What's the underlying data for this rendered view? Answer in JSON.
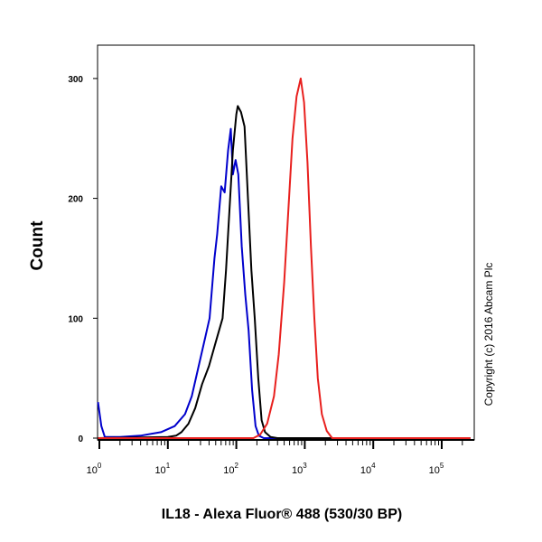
{
  "chart_data": {
    "type": "line",
    "title": "",
    "xlabel": "IL18 - Alexa Fluor® 488 (530/30 BP)",
    "ylabel": "Count",
    "x_scale": "log",
    "xlim": [
      0.95,
      262144
    ],
    "ylim": [
      0,
      330
    ],
    "x_ticks": [
      1,
      10,
      100,
      1000,
      10000,
      100000
    ],
    "x_tick_labels": [
      {
        "base": "10",
        "exp": "0"
      },
      {
        "base": "10",
        "exp": "1"
      },
      {
        "base": "10",
        "exp": "2"
      },
      {
        "base": "10",
        "exp": "3"
      },
      {
        "base": "10",
        "exp": "4"
      },
      {
        "base": "10",
        "exp": "5"
      }
    ],
    "y_ticks": [
      0,
      100,
      200,
      300
    ],
    "y_tick_labels": [
      "0",
      "100",
      "200",
      "300"
    ],
    "grid": false,
    "annotation": "Copyright (c) 2016 Abcam Plc",
    "series": [
      {
        "color": "#0000cc",
        "x": [
          0.955,
          1.07,
          1.2,
          2,
          3.98,
          7.94,
          12.6,
          17.8,
          22.4,
          28.2,
          35.5,
          40.7,
          47.9,
          52.5,
          60.3,
          67.6,
          75.9,
          83.2,
          89.1,
          97.7,
          107,
          120,
          135,
          151,
          170,
          191,
          214,
          251,
          262144
        ],
        "y": [
          30,
          10,
          1,
          1,
          2,
          5,
          10,
          20,
          35,
          60,
          85,
          100,
          150,
          170,
          210,
          205,
          240,
          258,
          220,
          232,
          220,
          160,
          120,
          90,
          40,
          10,
          2,
          0,
          0
        ]
      },
      {
        "color": "#000000",
        "x": [
          0.955,
          10,
          13.2,
          15.8,
          20,
          25.1,
          31.6,
          39.8,
          50.1,
          63.1,
          70.8,
          79.4,
          89.1,
          100,
          105,
          117,
          132,
          148,
          166,
          186,
          209,
          234,
          263,
          316,
          398,
          262144
        ],
        "y": [
          0,
          1,
          2,
          5,
          12,
          25,
          45,
          60,
          80,
          100,
          140,
          190,
          240,
          270,
          277,
          272,
          260,
          200,
          140,
          100,
          50,
          15,
          5,
          1,
          0,
          0
        ]
      },
      {
        "color": "#e8201e",
        "x": [
          0.955,
          178,
          224,
          282,
          355,
          417,
          501,
          575,
          661,
          759,
          871,
          977,
          1096,
          1230,
          1380,
          1549,
          1778,
          2089,
          2512,
          262144
        ],
        "y": [
          0,
          0,
          3,
          12,
          35,
          70,
          130,
          190,
          250,
          285,
          300,
          280,
          230,
          160,
          100,
          50,
          20,
          6,
          0,
          0
        ]
      }
    ]
  }
}
